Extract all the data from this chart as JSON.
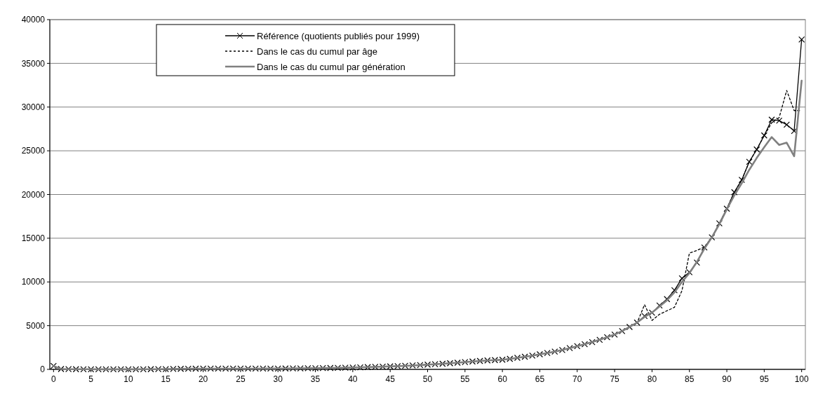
{
  "chart_data": {
    "type": "line",
    "x": [
      0,
      1,
      2,
      3,
      4,
      5,
      6,
      7,
      8,
      9,
      10,
      11,
      12,
      13,
      14,
      15,
      16,
      17,
      18,
      19,
      20,
      21,
      22,
      23,
      24,
      25,
      26,
      27,
      28,
      29,
      30,
      31,
      32,
      33,
      34,
      35,
      36,
      37,
      38,
      39,
      40,
      41,
      42,
      43,
      44,
      45,
      46,
      47,
      48,
      49,
      50,
      51,
      52,
      53,
      54,
      55,
      56,
      57,
      58,
      59,
      60,
      61,
      62,
      63,
      64,
      65,
      66,
      67,
      68,
      69,
      70,
      71,
      72,
      73,
      74,
      75,
      76,
      77,
      78,
      79,
      80,
      81,
      82,
      83,
      84,
      85,
      86,
      87,
      88,
      89,
      90,
      91,
      92,
      93,
      94,
      95,
      96,
      97,
      98,
      99,
      100
    ],
    "xlim": [
      -0.5,
      100.5
    ],
    "xticks": [
      0,
      5,
      10,
      15,
      20,
      25,
      30,
      35,
      40,
      45,
      50,
      55,
      60,
      65,
      70,
      75,
      80,
      85,
      90,
      95,
      100
    ],
    "ylim": [
      0,
      40000
    ],
    "yticks": [
      0,
      5000,
      10000,
      15000,
      20000,
      25000,
      30000,
      35000,
      40000
    ],
    "grid": "y",
    "legend": "top left",
    "series": [
      {
        "name": "Référence (quotients publiés pour 1999)",
        "color": "#000000",
        "marker": "cross",
        "line_style": "solid",
        "values": [
          390,
          40,
          25,
          20,
          15,
          15,
          12,
          12,
          12,
          12,
          12,
          12,
          15,
          18,
          25,
          35,
          45,
          60,
          75,
          80,
          85,
          85,
          85,
          85,
          85,
          85,
          85,
          85,
          90,
          90,
          95,
          100,
          110,
          115,
          125,
          135,
          150,
          160,
          175,
          195,
          215,
          235,
          260,
          285,
          310,
          340,
          370,
          405,
          445,
          490,
          540,
          590,
          640,
          700,
          760,
          830,
          900,
          960,
          1020,
          1060,
          1100,
          1200,
          1320,
          1440,
          1570,
          1720,
          1870,
          2030,
          2220,
          2430,
          2650,
          2880,
          3120,
          3380,
          3680,
          3980,
          4380,
          4850,
          5350,
          6100,
          6480,
          7300,
          8040,
          9050,
          10410,
          11110,
          12210,
          13940,
          15100,
          16700,
          18380,
          20260,
          21670,
          23740,
          25150,
          26750,
          28560,
          28450,
          27990,
          27270,
          37730
        ]
      },
      {
        "name": "Dans le cas du cumul par âge",
        "color": "#000000",
        "marker": "none",
        "line_style": "dashed",
        "values": [
          390,
          40,
          25,
          20,
          15,
          15,
          12,
          12,
          12,
          12,
          12,
          12,
          15,
          18,
          25,
          35,
          45,
          60,
          75,
          80,
          85,
          85,
          85,
          85,
          85,
          85,
          85,
          85,
          90,
          90,
          95,
          100,
          110,
          115,
          125,
          135,
          150,
          160,
          175,
          195,
          215,
          235,
          260,
          285,
          310,
          340,
          370,
          405,
          445,
          490,
          540,
          590,
          640,
          700,
          760,
          830,
          900,
          960,
          1020,
          1060,
          1100,
          1200,
          1320,
          1440,
          1570,
          1720,
          1870,
          2030,
          2220,
          2430,
          2650,
          2880,
          3120,
          3380,
          3680,
          3980,
          4380,
          4850,
          5300,
          7400,
          5600,
          6300,
          6700,
          7100,
          9000,
          13300,
          13600,
          14000,
          15100,
          16700,
          18380,
          20260,
          21670,
          23740,
          25150,
          26750,
          28200,
          28800,
          31900,
          29600,
          29600
        ]
      },
      {
        "name": "Dans le cas du cumul par génération",
        "color": "#808080",
        "marker": "none",
        "line_style": "solid",
        "values": [
          390,
          40,
          25,
          20,
          15,
          15,
          12,
          12,
          12,
          12,
          12,
          12,
          15,
          18,
          25,
          35,
          45,
          60,
          75,
          80,
          85,
          85,
          85,
          85,
          85,
          85,
          85,
          85,
          90,
          90,
          95,
          100,
          110,
          115,
          125,
          135,
          150,
          160,
          175,
          195,
          215,
          235,
          260,
          285,
          310,
          340,
          370,
          405,
          445,
          490,
          540,
          590,
          640,
          700,
          760,
          830,
          900,
          960,
          1020,
          1060,
          1100,
          1200,
          1320,
          1440,
          1570,
          1720,
          1870,
          2030,
          2220,
          2430,
          2650,
          2880,
          3120,
          3380,
          3680,
          3980,
          4380,
          4850,
          5350,
          6000,
          6500,
          7200,
          7900,
          8800,
          10000,
          11000,
          12300,
          13800,
          15100,
          16600,
          18300,
          19900,
          21300,
          22830,
          24180,
          25410,
          26570,
          25670,
          25930,
          24380,
          33020
        ]
      }
    ]
  }
}
